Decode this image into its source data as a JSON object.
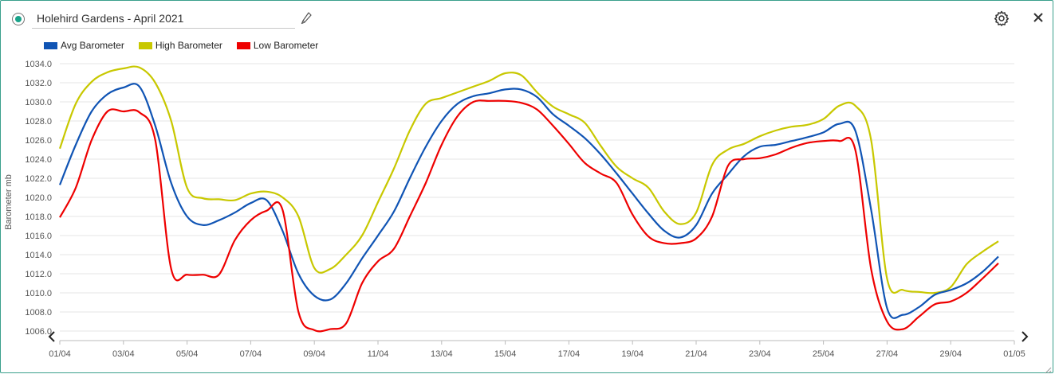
{
  "window": {
    "title": "Holehird Gardens - April 2021",
    "status_color": "#1aa38a",
    "accent_color": "#3aa08c",
    "icons": [
      "edit-icon",
      "settings-icon",
      "close-icon"
    ]
  },
  "legend": [
    {
      "label": "Avg Barometer",
      "color": "#1054b4"
    },
    {
      "label": "High Barometer",
      "color": "#c8c800"
    },
    {
      "label": "Low Barometer",
      "color": "#ee0000"
    }
  ],
  "chart_data": {
    "type": "line",
    "ylabel": "Barometer mb",
    "ylim": [
      1005.0,
      1034.0
    ],
    "y_ticks": [
      "1006.0",
      "1008.0",
      "1010.0",
      "1012.0",
      "1014.0",
      "1016.0",
      "1018.0",
      "1020.0",
      "1022.0",
      "1024.0",
      "1026.0",
      "1028.0",
      "1030.0",
      "1032.0",
      "1034.0"
    ],
    "x_ticks": [
      "01/04",
      "03/04",
      "05/04",
      "07/04",
      "09/04",
      "11/04",
      "13/04",
      "15/04",
      "17/04",
      "19/04",
      "21/04",
      "23/04",
      "25/04",
      "27/04",
      "29/04",
      "01/05"
    ],
    "x_range": [
      "01/04",
      "01/05"
    ],
    "grid": true,
    "legend_position": "top-left",
    "series": [
      {
        "name": "Avg Barometer",
        "color": "#1054b4",
        "x": [
          "01/04 00:00",
          "01/04 12:00",
          "02/04",
          "02/04 12:00",
          "03/04",
          "03/04 12:00",
          "04/04",
          "04/04 12:00",
          "05/04",
          "05/04 12:00",
          "06/04",
          "06/04 12:00",
          "07/04",
          "07/04 12:00",
          "08/04",
          "08/04 12:00",
          "09/04",
          "09/04 12:00",
          "10/04",
          "10/04 12:00",
          "11/04",
          "11/04 12:00",
          "12/04",
          "12/04 12:00",
          "13/04",
          "13/04 12:00",
          "14/04",
          "14/04 12:00",
          "15/04",
          "15/04 12:00",
          "16/04",
          "16/04 12:00",
          "17/04",
          "17/04 12:00",
          "18/04",
          "18/04 12:00",
          "19/04",
          "19/04 12:00",
          "20/04",
          "20/04 12:00",
          "21/04",
          "21/04 12:00",
          "22/04",
          "22/04 12:00",
          "23/04",
          "23/04 12:00",
          "24/04",
          "24/04 12:00",
          "25/04",
          "25/04 12:00",
          "26/04",
          "26/04 12:00",
          "27/04",
          "27/04 12:00",
          "28/04",
          "28/04 12:00",
          "29/04",
          "29/04 12:00",
          "30/04",
          "30/04 12:00"
        ],
        "values": [
          1021.3,
          1025.5,
          1029.0,
          1030.8,
          1031.5,
          1031.6,
          1027.5,
          1021.5,
          1018.0,
          1017.1,
          1017.6,
          1018.4,
          1019.4,
          1019.7,
          1016.5,
          1012.0,
          1009.7,
          1009.3,
          1011.0,
          1013.6,
          1016.0,
          1018.5,
          1022.0,
          1025.3,
          1028.0,
          1029.8,
          1030.6,
          1030.9,
          1031.3,
          1031.3,
          1030.5,
          1028.7,
          1027.5,
          1026.2,
          1024.5,
          1022.5,
          1020.4,
          1018.3,
          1016.5,
          1015.8,
          1017.1,
          1020.4,
          1022.4,
          1024.3,
          1025.3,
          1025.5,
          1025.9,
          1026.3,
          1026.8,
          1027.7,
          1027.0,
          1018.7,
          1008.4,
          1007.7,
          1008.5,
          1009.8,
          1010.3,
          1011.0,
          1012.2,
          1013.8
        ]
      },
      {
        "name": "High Barometer",
        "color": "#c8c800",
        "x": [
          "01/04 00:00",
          "01/04 12:00",
          "02/04",
          "02/04 12:00",
          "03/04",
          "03/04 12:00",
          "04/04",
          "04/04 12:00",
          "05/04",
          "05/04 12:00",
          "06/04",
          "06/04 12:00",
          "07/04",
          "07/04 12:00",
          "08/04",
          "08/04 12:00",
          "09/04",
          "09/04 12:00",
          "10/04",
          "10/04 12:00",
          "11/04",
          "11/04 12:00",
          "12/04",
          "12/04 12:00",
          "13/04",
          "13/04 12:00",
          "14/04",
          "14/04 12:00",
          "15/04",
          "15/04 12:00",
          "16/04",
          "16/04 12:00",
          "17/04",
          "17/04 12:00",
          "18/04",
          "18/04 12:00",
          "19/04",
          "19/04 12:00",
          "20/04",
          "20/04 12:00",
          "21/04",
          "21/04 12:00",
          "22/04",
          "22/04 12:00",
          "23/04",
          "23/04 12:00",
          "24/04",
          "24/04 12:00",
          "25/04",
          "25/04 12:00",
          "26/04",
          "26/04 12:00",
          "27/04",
          "27/04 12:00",
          "28/04",
          "28/04 12:00",
          "29/04",
          "29/04 12:00",
          "30/04",
          "30/04 12:00"
        ],
        "values": [
          1025.1,
          1029.8,
          1032.1,
          1033.1,
          1033.5,
          1033.6,
          1032.0,
          1028.0,
          1021.0,
          1019.9,
          1019.8,
          1019.7,
          1020.4,
          1020.6,
          1020.0,
          1018.0,
          1012.6,
          1012.5,
          1014.0,
          1016.0,
          1019.5,
          1023.0,
          1027.0,
          1029.8,
          1030.4,
          1031.0,
          1031.6,
          1032.2,
          1033.0,
          1032.8,
          1031.0,
          1029.5,
          1028.7,
          1027.8,
          1025.4,
          1023.2,
          1022.0,
          1021.0,
          1018.5,
          1017.2,
          1018.4,
          1023.4,
          1025.0,
          1025.6,
          1026.4,
          1027.0,
          1027.4,
          1027.6,
          1028.2,
          1029.6,
          1029.6,
          1026.0,
          1011.5,
          1010.3,
          1010.1,
          1010.0,
          1010.6,
          1013.0,
          1014.3,
          1015.4
        ]
      },
      {
        "name": "Low Barometer",
        "color": "#ee0000",
        "x": [
          "01/04 00:00",
          "01/04 12:00",
          "02/04",
          "02/04 12:00",
          "03/04",
          "03/04 12:00",
          "04/04",
          "04/04 12:00",
          "05/04",
          "05/04 12:00",
          "06/04",
          "06/04 12:00",
          "07/04",
          "07/04 12:00",
          "08/04",
          "08/04 12:00",
          "09/04",
          "09/04 12:00",
          "10/04",
          "10/04 12:00",
          "11/04",
          "11/04 12:00",
          "12/04",
          "12/04 12:00",
          "13/04",
          "13/04 12:00",
          "14/04",
          "14/04 12:00",
          "15/04",
          "15/04 12:00",
          "16/04",
          "16/04 12:00",
          "17/04",
          "17/04 12:00",
          "18/04",
          "18/04 12:00",
          "19/04",
          "19/04 12:00",
          "20/04",
          "20/04 12:00",
          "21/04",
          "21/04 12:00",
          "22/04",
          "22/04 12:00",
          "23/04",
          "23/04 12:00",
          "24/04",
          "24/04 12:00",
          "25/04",
          "25/04 12:00",
          "26/04",
          "26/04 12:00",
          "27/04",
          "27/04 12:00",
          "28/04",
          "28/04 12:00",
          "29/04",
          "29/04 12:00",
          "30/04",
          "30/04 12:00"
        ],
        "values": [
          1017.9,
          1021.0,
          1026.0,
          1029.0,
          1029.0,
          1028.9,
          1026.0,
          1012.5,
          1011.9,
          1011.9,
          1011.9,
          1015.5,
          1017.6,
          1018.6,
          1018.7,
          1008.0,
          1006.1,
          1006.2,
          1006.8,
          1011.0,
          1013.3,
          1014.6,
          1018.0,
          1021.5,
          1025.5,
          1028.5,
          1030.0,
          1030.1,
          1030.1,
          1029.9,
          1029.2,
          1027.5,
          1025.6,
          1023.6,
          1022.5,
          1021.5,
          1018.2,
          1015.9,
          1015.2,
          1015.2,
          1015.7,
          1018.0,
          1023.3,
          1024.0,
          1024.1,
          1024.5,
          1025.2,
          1025.7,
          1025.9,
          1025.9,
          1025.0,
          1012.5,
          1007.0,
          1006.2,
          1007.5,
          1008.8,
          1009.1,
          1010.0,
          1011.5,
          1013.1
        ]
      }
    ]
  }
}
